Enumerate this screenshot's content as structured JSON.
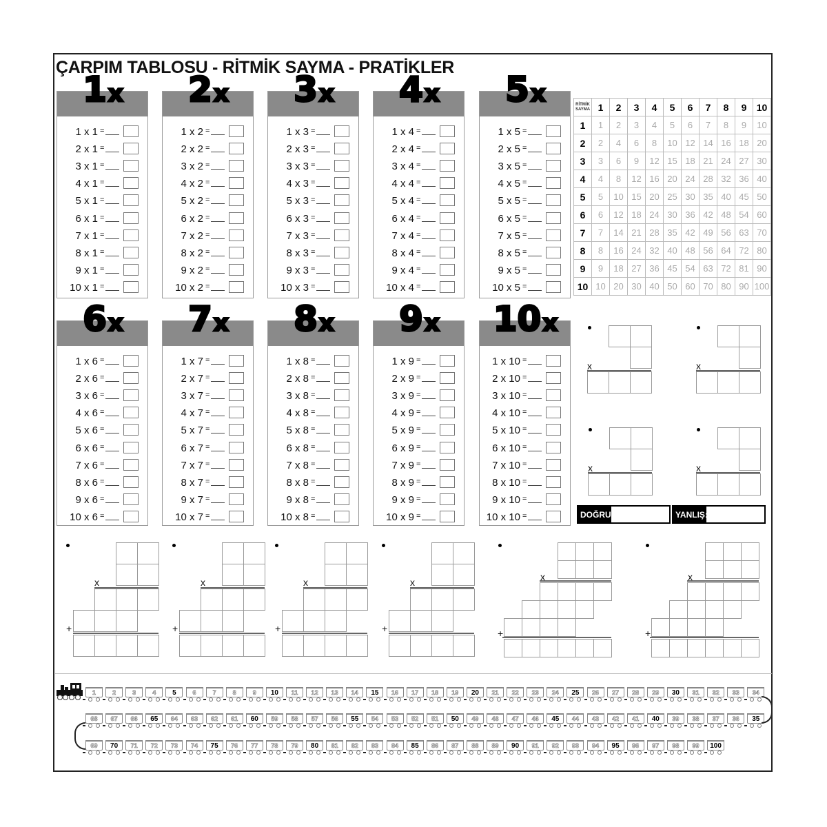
{
  "title": "ÇARPIM TABLOSU - RİTMİK SAYMA - PRATİKLER",
  "equals": "=",
  "cards": [
    {
      "header_number": "1",
      "header_x": "x",
      "rows": [
        "1 x 1",
        "2 x 1",
        "3 x 1",
        "4 x 1",
        "5 x 1",
        "6 x 1",
        "7 x 1",
        "8 x 1",
        "9 x 1",
        "10 x 1"
      ]
    },
    {
      "header_number": "2",
      "header_x": "x",
      "rows": [
        "1 x 2",
        "2 x 2",
        "3 x 2",
        "4 x 2",
        "5 x 2",
        "6 x 2",
        "7 x 2",
        "8 x 2",
        "9 x 2",
        "10 x 2"
      ]
    },
    {
      "header_number": "3",
      "header_x": "x",
      "rows": [
        "1 x 3",
        "2 x 3",
        "3 x 3",
        "4 x 3",
        "5 x 3",
        "6 x 3",
        "7 x 3",
        "8 x 3",
        "9 x 3",
        "10 x 3"
      ]
    },
    {
      "header_number": "4",
      "header_x": "x",
      "rows": [
        "1 x 4",
        "2 x 4",
        "3 x 4",
        "4 x 4",
        "5 x 4",
        "6 x 4",
        "7 x 4",
        "8 x 4",
        "9 x 4",
        "10 x 4"
      ]
    },
    {
      "header_number": "5",
      "header_x": "x",
      "rows": [
        "1 x 5",
        "2 x 5",
        "3 x 5",
        "4 x 5",
        "5 x 5",
        "6 x 5",
        "7 x 5",
        "8 x 5",
        "9 x 5",
        "10 x 5"
      ]
    },
    {
      "header_number": "6",
      "header_x": "x",
      "rows": [
        "1 x 6",
        "2 x 6",
        "3 x 6",
        "4 x 6",
        "5 x 6",
        "6 x 6",
        "7 x 6",
        "8 x 6",
        "9 x 6",
        "10 x 6"
      ]
    },
    {
      "header_number": "7",
      "header_x": "x",
      "rows": [
        "1 x 7",
        "2 x 7",
        "3 x 7",
        "4 x 7",
        "5 x 7",
        "6 x 7",
        "7 x 7",
        "8 x 7",
        "9 x 7",
        "10 x 7"
      ]
    },
    {
      "header_number": "8",
      "header_x": "x",
      "rows": [
        "1 x 8",
        "2 x 8",
        "3 x 8",
        "4 x 8",
        "5 x 8",
        "6 x 8",
        "7 x 8",
        "8 x 8",
        "9 x 8",
        "10 x 8"
      ]
    },
    {
      "header_number": "9",
      "header_x": "x",
      "rows": [
        "1 x 9",
        "2 x 9",
        "3 x 9",
        "4 x 9",
        "5 x 9",
        "6 x 9",
        "7 x 9",
        "8 x 9",
        "9 x 9",
        "10 x 9"
      ]
    },
    {
      "header_number": "10",
      "header_x": "x",
      "rows": [
        "1 x 10",
        "2 x 10",
        "3 x 10",
        "4 x 10",
        "5 x 10",
        "6 x 10",
        "7 x 10",
        "8 x 10",
        "9 x 10",
        "10 x 10"
      ]
    }
  ],
  "rhythm_table": {
    "corner_label": [
      "RİTMİK",
      "SAYMA"
    ],
    "column_headers": [
      "1",
      "2",
      "3",
      "4",
      "5",
      "6",
      "7",
      "8",
      "9",
      "10"
    ],
    "row_headers": [
      "1",
      "2",
      "3",
      "4",
      "5",
      "6",
      "7",
      "8",
      "9",
      "10"
    ],
    "values": [
      [
        "1",
        "2",
        "3",
        "4",
        "5",
        "6",
        "7",
        "8",
        "9",
        "10"
      ],
      [
        "2",
        "4",
        "6",
        "8",
        "10",
        "12",
        "14",
        "16",
        "18",
        "20"
      ],
      [
        "3",
        "6",
        "9",
        "12",
        "15",
        "18",
        "21",
        "24",
        "27",
        "30"
      ],
      [
        "4",
        "8",
        "12",
        "16",
        "20",
        "24",
        "28",
        "32",
        "36",
        "40"
      ],
      [
        "5",
        "10",
        "15",
        "20",
        "25",
        "30",
        "35",
        "40",
        "45",
        "50"
      ],
      [
        "6",
        "12",
        "18",
        "24",
        "30",
        "36",
        "42",
        "48",
        "54",
        "60"
      ],
      [
        "7",
        "14",
        "21",
        "28",
        "35",
        "42",
        "49",
        "56",
        "63",
        "70"
      ],
      [
        "8",
        "16",
        "24",
        "32",
        "40",
        "48",
        "56",
        "64",
        "72",
        "80"
      ],
      [
        "9",
        "18",
        "27",
        "36",
        "45",
        "54",
        "63",
        "72",
        "81",
        "90"
      ],
      [
        "10",
        "20",
        "30",
        "40",
        "50",
        "60",
        "70",
        "80",
        "90",
        "100"
      ]
    ]
  },
  "practice": {
    "bullet": "•",
    "times": "x",
    "plus": "+"
  },
  "score": {
    "correct_label": "DOĞRU:",
    "wrong_label": "YANLIŞ:"
  },
  "train": {
    "icon": "locomotive-icon",
    "rows": [
      [
        1,
        2,
        3,
        4,
        5,
        6,
        7,
        8,
        9,
        10,
        11,
        12,
        13,
        14,
        15,
        16,
        17,
        18,
        19,
        20,
        21,
        22,
        23,
        24,
        25,
        26,
        27,
        28,
        29,
        30,
        31,
        32,
        33,
        34
      ],
      [
        68,
        67,
        66,
        65,
        64,
        63,
        62,
        61,
        60,
        59,
        58,
        57,
        56,
        55,
        54,
        53,
        52,
        51,
        50,
        49,
        48,
        47,
        46,
        45,
        44,
        43,
        42,
        41,
        40,
        39,
        38,
        37,
        36,
        35
      ],
      [
        69,
        70,
        71,
        72,
        73,
        74,
        75,
        76,
        77,
        78,
        79,
        80,
        81,
        82,
        83,
        84,
        85,
        86,
        87,
        88,
        89,
        90,
        91,
        92,
        93,
        94,
        95,
        96,
        97,
        98,
        99,
        100
      ]
    ],
    "highlight_multiple": 5
  }
}
